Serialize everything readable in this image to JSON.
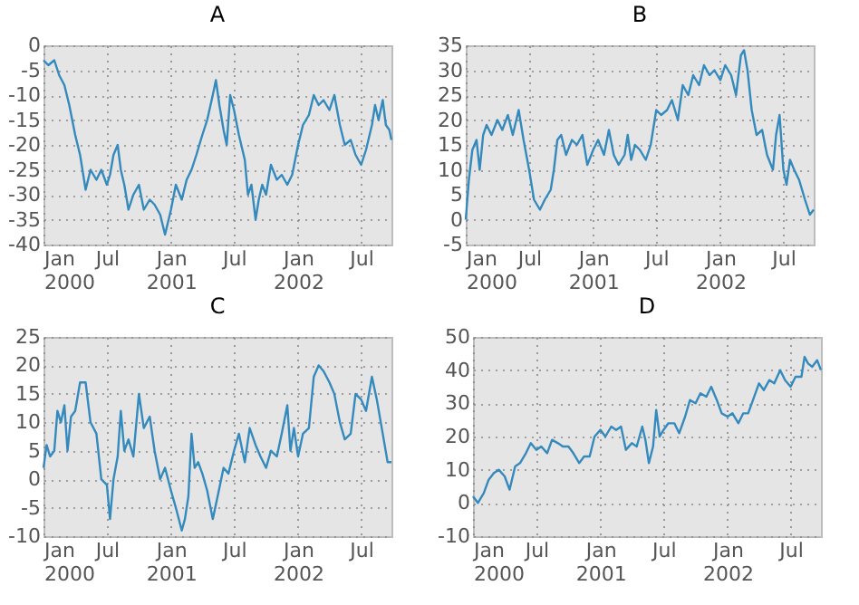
{
  "chart_data": [
    {
      "type": "line",
      "title": "A",
      "grid": true,
      "xlim": [
        "2000-01-01",
        "2002-09-26"
      ],
      "ylim": [
        -40,
        0
      ],
      "yticks": [
        -40,
        -35,
        -30,
        -25,
        -20,
        -15,
        -10,
        -5,
        0
      ],
      "xticks": [
        {
          "value": "2000-01-01",
          "label": "Jan\n2000"
        },
        {
          "value": "2000-07-01",
          "label": "Jul"
        },
        {
          "value": "2001-01-01",
          "label": "Jan\n2001"
        },
        {
          "value": "2001-07-01",
          "label": "Jul"
        },
        {
          "value": "2002-01-01",
          "label": "Jan\n2002"
        },
        {
          "value": "2002-07-01",
          "label": "Jul"
        }
      ],
      "x": [
        "2000-01-01",
        "2000-01-15",
        "2000-02-01",
        "2000-02-15",
        "2000-03-01",
        "2000-03-15",
        "2000-04-01",
        "2000-04-15",
        "2000-05-01",
        "2000-05-15",
        "2000-06-01",
        "2000-06-15",
        "2000-07-01",
        "2000-07-10",
        "2000-07-20",
        "2000-08-01",
        "2000-08-10",
        "2000-08-20",
        "2000-09-01",
        "2000-09-15",
        "2000-10-01",
        "2000-10-15",
        "2000-11-01",
        "2000-11-15",
        "2000-12-01",
        "2000-12-15",
        "2001-01-01",
        "2001-01-15",
        "2001-02-01",
        "2001-02-15",
        "2001-03-01",
        "2001-03-15",
        "2001-04-01",
        "2001-04-15",
        "2001-05-01",
        "2001-05-10",
        "2001-05-20",
        "2001-06-01",
        "2001-06-10",
        "2001-06-20",
        "2001-07-01",
        "2001-07-15",
        "2001-08-01",
        "2001-08-10",
        "2001-08-20",
        "2001-09-01",
        "2001-09-10",
        "2001-09-20",
        "2001-10-01",
        "2001-10-15",
        "2001-11-01",
        "2001-11-15",
        "2001-12-01",
        "2001-12-15",
        "2002-01-01",
        "2002-01-15",
        "2002-02-01",
        "2002-02-15",
        "2002-03-01",
        "2002-03-15",
        "2002-04-01",
        "2002-04-15",
        "2002-05-01",
        "2002-05-15",
        "2002-06-01",
        "2002-06-15",
        "2002-07-01",
        "2002-07-15",
        "2002-08-01",
        "2002-08-10",
        "2002-08-20",
        "2002-09-01",
        "2002-09-10",
        "2002-09-20",
        "2002-09-26"
      ],
      "series": [
        {
          "color": "#348abd",
          "values": [
            -3,
            -4,
            -3,
            -6,
            -8,
            -12,
            -18,
            -22,
            -29,
            -25,
            -27,
            -25,
            -28,
            -26,
            -22,
            -20,
            -25,
            -28,
            -33,
            -30,
            -28,
            -33,
            -31,
            -32,
            -34,
            -38,
            -33,
            -28,
            -31,
            -27,
            -25,
            -22,
            -18,
            -15,
            -10,
            -7,
            -12,
            -17,
            -20,
            -10,
            -13,
            -18,
            -23,
            -30,
            -28,
            -35,
            -31,
            -28,
            -30,
            -24,
            -27,
            -26,
            -28,
            -26,
            -20,
            -16,
            -14,
            -10,
            -12,
            -11,
            -13,
            -10,
            -16,
            -20,
            -19,
            -22,
            -24,
            -21,
            -16,
            -12,
            -15,
            -11,
            -16,
            -17,
            -19
          ]
        }
      ]
    },
    {
      "type": "line",
      "title": "B",
      "grid": true,
      "xlim": [
        "2000-01-01",
        "2002-09-26"
      ],
      "ylim": [
        -5,
        35
      ],
      "yticks": [
        -5,
        0,
        5,
        10,
        15,
        20,
        25,
        30,
        35
      ],
      "xticks": [
        {
          "value": "2000-01-01",
          "label": "Jan\n2000"
        },
        {
          "value": "2000-07-01",
          "label": "Jul"
        },
        {
          "value": "2001-01-01",
          "label": "Jan\n2001"
        },
        {
          "value": "2001-07-01",
          "label": "Jul"
        },
        {
          "value": "2002-01-01",
          "label": "Jan\n2002"
        },
        {
          "value": "2002-07-01",
          "label": "Jul"
        }
      ],
      "x": [
        "2000-01-01",
        "2000-01-10",
        "2000-01-20",
        "2000-02-01",
        "2000-02-10",
        "2000-02-20",
        "2000-03-01",
        "2000-03-15",
        "2000-04-01",
        "2000-04-15",
        "2000-05-01",
        "2000-05-15",
        "2000-06-01",
        "2000-06-15",
        "2000-07-01",
        "2000-07-15",
        "2000-08-01",
        "2000-08-15",
        "2000-09-01",
        "2000-09-10",
        "2000-09-20",
        "2000-10-01",
        "2000-10-15",
        "2000-11-01",
        "2000-11-15",
        "2000-12-01",
        "2000-12-15",
        "2001-01-01",
        "2001-01-15",
        "2001-02-01",
        "2001-02-15",
        "2001-03-01",
        "2001-03-15",
        "2001-04-01",
        "2001-04-10",
        "2001-04-20",
        "2001-05-01",
        "2001-05-15",
        "2001-06-01",
        "2001-06-15",
        "2001-07-01",
        "2001-07-15",
        "2001-08-01",
        "2001-08-15",
        "2001-09-01",
        "2001-09-15",
        "2001-10-01",
        "2001-10-15",
        "2001-11-01",
        "2001-11-15",
        "2001-12-01",
        "2001-12-15",
        "2002-01-01",
        "2002-01-15",
        "2002-02-01",
        "2002-02-15",
        "2002-03-01",
        "2002-03-10",
        "2002-03-20",
        "2002-04-01",
        "2002-04-15",
        "2002-05-01",
        "2002-05-15",
        "2002-06-01",
        "2002-06-10",
        "2002-06-20",
        "2002-07-01",
        "2002-07-10",
        "2002-07-20",
        "2002-08-01",
        "2002-08-15",
        "2002-09-01",
        "2002-09-15",
        "2002-09-26"
      ],
      "series": [
        {
          "color": "#348abd",
          "values": [
            0,
            8,
            14,
            16,
            10,
            17,
            19,
            17,
            20,
            18,
            21,
            17,
            22,
            16,
            10,
            4,
            2,
            4,
            6,
            10,
            16,
            17,
            13,
            16,
            15,
            17,
            11,
            14,
            16,
            13,
            18,
            13,
            11,
            13,
            17,
            12,
            15,
            14,
            12,
            15,
            22,
            21,
            22,
            24,
            20,
            27,
            25,
            29,
            27,
            31,
            29,
            30,
            28,
            31,
            29,
            25,
            33,
            34,
            30,
            22,
            17,
            18,
            13,
            10,
            17,
            21,
            10,
            7,
            12,
            10,
            8,
            4,
            1,
            2
          ]
        }
      ]
    },
    {
      "type": "line",
      "title": "C",
      "grid": true,
      "xlim": [
        "2000-01-01",
        "2002-09-26"
      ],
      "ylim": [
        -10,
        25
      ],
      "yticks": [
        -10,
        -5,
        0,
        5,
        10,
        15,
        20,
        25
      ],
      "xticks": [
        {
          "value": "2000-01-01",
          "label": "Jan\n2000"
        },
        {
          "value": "2000-07-01",
          "label": "Jul"
        },
        {
          "value": "2001-01-01",
          "label": "Jan\n2001"
        },
        {
          "value": "2001-07-01",
          "label": "Jul"
        },
        {
          "value": "2002-01-01",
          "label": "Jan\n2002"
        },
        {
          "value": "2002-07-01",
          "label": "Jul"
        }
      ],
      "x": [
        "2000-01-01",
        "2000-01-10",
        "2000-01-20",
        "2000-02-01",
        "2000-02-10",
        "2000-02-20",
        "2000-03-01",
        "2000-03-10",
        "2000-03-20",
        "2000-04-01",
        "2000-04-15",
        "2000-05-01",
        "2000-05-15",
        "2000-06-01",
        "2000-06-15",
        "2000-07-01",
        "2000-07-10",
        "2000-07-20",
        "2000-08-01",
        "2000-08-10",
        "2000-08-20",
        "2000-09-01",
        "2000-09-15",
        "2000-10-01",
        "2000-10-15",
        "2000-11-01",
        "2000-11-15",
        "2000-12-01",
        "2000-12-15",
        "2001-01-01",
        "2001-01-15",
        "2001-02-01",
        "2001-02-10",
        "2001-02-20",
        "2001-03-01",
        "2001-03-10",
        "2001-03-20",
        "2001-04-01",
        "2001-04-15",
        "2001-05-01",
        "2001-05-15",
        "2001-06-01",
        "2001-06-15",
        "2001-07-01",
        "2001-07-15",
        "2001-08-01",
        "2001-08-15",
        "2001-09-01",
        "2001-09-15",
        "2001-10-01",
        "2001-10-15",
        "2001-11-01",
        "2001-11-15",
        "2001-12-01",
        "2001-12-10",
        "2001-12-20",
        "2002-01-01",
        "2002-01-15",
        "2002-02-01",
        "2002-02-15",
        "2002-03-01",
        "2002-03-15",
        "2002-04-01",
        "2002-04-15",
        "2002-05-01",
        "2002-05-15",
        "2002-06-01",
        "2002-06-15",
        "2002-07-01",
        "2002-07-15",
        "2002-08-01",
        "2002-08-15",
        "2002-09-01",
        "2002-09-15",
        "2002-09-26"
      ],
      "series": [
        {
          "color": "#348abd",
          "values": [
            2,
            6,
            4,
            5,
            12,
            10,
            13,
            5,
            11,
            12,
            17,
            17,
            10,
            8,
            0,
            -1,
            -7,
            0,
            4,
            12,
            5,
            7,
            4,
            15,
            9,
            11,
            5,
            0,
            2,
            -2,
            -5,
            -9,
            -7,
            -3,
            8,
            2,
            3,
            1,
            -2,
            -7,
            -3,
            2,
            1,
            5,
            8,
            3,
            9,
            6,
            4,
            2,
            5,
            4,
            8,
            13,
            5,
            9,
            4,
            8,
            9,
            18,
            20,
            19,
            17,
            15,
            10,
            7,
            8,
            15,
            14,
            12,
            18,
            14,
            8,
            3,
            3
          ]
        }
      ]
    },
    {
      "type": "line",
      "title": "D",
      "grid": true,
      "xlim": [
        "2000-01-01",
        "2002-09-26"
      ],
      "ylim": [
        -10,
        50
      ],
      "yticks": [
        -10,
        0,
        10,
        20,
        30,
        40,
        50
      ],
      "xticks": [
        {
          "value": "2000-01-01",
          "label": "Jan\n2000"
        },
        {
          "value": "2000-07-01",
          "label": "Jul"
        },
        {
          "value": "2001-01-01",
          "label": "Jan\n2001"
        },
        {
          "value": "2001-07-01",
          "label": "Jul"
        },
        {
          "value": "2002-01-01",
          "label": "Jan\n2002"
        },
        {
          "value": "2002-07-01",
          "label": "Jul"
        }
      ],
      "x": [
        "2000-01-01",
        "2000-01-15",
        "2000-02-01",
        "2000-02-15",
        "2000-03-01",
        "2000-03-15",
        "2000-04-01",
        "2000-04-15",
        "2000-05-01",
        "2000-05-15",
        "2000-06-01",
        "2000-06-15",
        "2000-07-01",
        "2000-07-15",
        "2000-08-01",
        "2000-08-15",
        "2000-09-01",
        "2000-09-15",
        "2000-10-01",
        "2000-10-15",
        "2000-11-01",
        "2000-11-15",
        "2000-12-01",
        "2000-12-15",
        "2001-01-01",
        "2001-01-15",
        "2001-02-01",
        "2001-02-15",
        "2001-03-01",
        "2001-03-15",
        "2001-04-01",
        "2001-04-15",
        "2001-05-01",
        "2001-05-10",
        "2001-05-20",
        "2001-06-01",
        "2001-06-10",
        "2001-06-20",
        "2001-07-01",
        "2001-07-15",
        "2001-08-01",
        "2001-08-15",
        "2001-09-01",
        "2001-09-15",
        "2001-10-01",
        "2001-10-15",
        "2001-11-01",
        "2001-11-15",
        "2001-12-01",
        "2001-12-15",
        "2002-01-01",
        "2002-01-15",
        "2002-02-01",
        "2002-02-15",
        "2002-03-01",
        "2002-03-15",
        "2002-04-01",
        "2002-04-15",
        "2002-05-01",
        "2002-05-15",
        "2002-06-01",
        "2002-06-15",
        "2002-07-01",
        "2002-07-15",
        "2002-08-01",
        "2002-08-10",
        "2002-08-20",
        "2002-09-01",
        "2002-09-15",
        "2002-09-26"
      ],
      "series": [
        {
          "color": "#348abd",
          "values": [
            2,
            0,
            3,
            7,
            9,
            10,
            8,
            4,
            11,
            12,
            15,
            18,
            16,
            17,
            15,
            19,
            18,
            17,
            17,
            15,
            12,
            14,
            14,
            20,
            22,
            20,
            23,
            22,
            23,
            16,
            18,
            17,
            23,
            19,
            12,
            17,
            28,
            20,
            22,
            24,
            24,
            21,
            26,
            31,
            30,
            33,
            32,
            35,
            31,
            27,
            26,
            27,
            24,
            27,
            27,
            31,
            36,
            34,
            37,
            36,
            40,
            37,
            35,
            38,
            38,
            44,
            42,
            41,
            43,
            40
          ]
        }
      ]
    }
  ]
}
